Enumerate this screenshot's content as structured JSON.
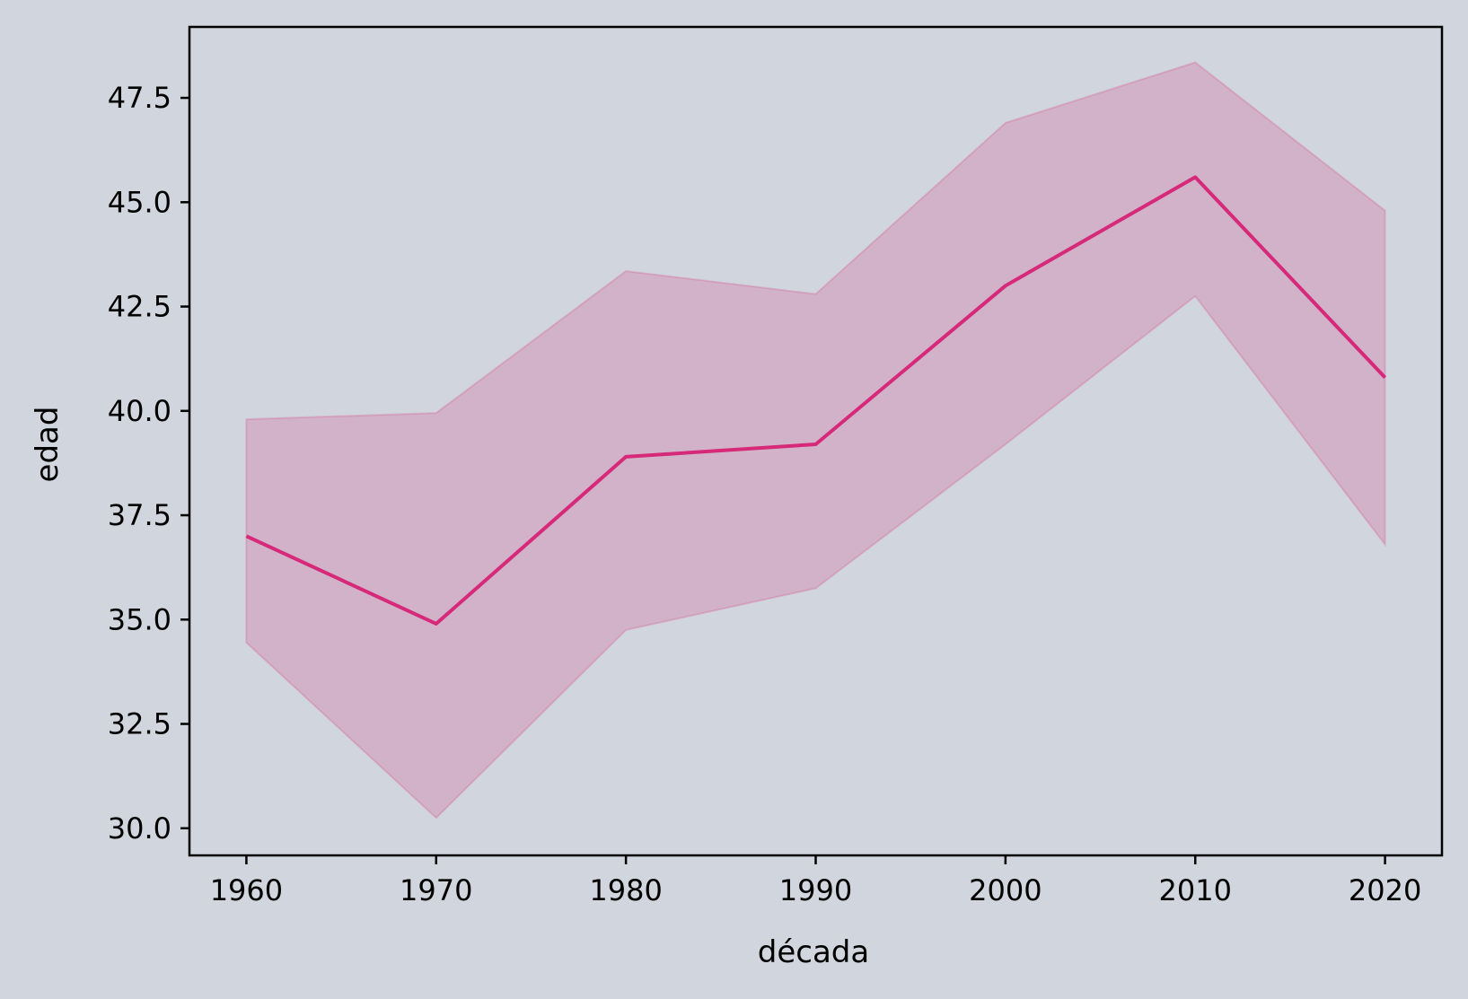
{
  "chart_data": {
    "type": "line",
    "title": "",
    "xlabel": "década",
    "ylabel": "edad",
    "x": [
      1960,
      1970,
      1980,
      1990,
      2000,
      2010,
      2020
    ],
    "series": [
      {
        "values": [
          37.0,
          34.9,
          38.9,
          39.2,
          43.0,
          45.6,
          40.8
        ],
        "ci_lower": [
          34.45,
          30.25,
          34.75,
          35.75,
          39.2,
          42.75,
          36.8
        ],
        "ci_upper": [
          39.8,
          39.95,
          43.35,
          42.8,
          46.9,
          48.35,
          44.8
        ]
      }
    ],
    "xticks": [
      "1960",
      "1970",
      "1980",
      "1990",
      "2000",
      "2010",
      "2020"
    ],
    "yticks": [
      "30.0",
      "32.5",
      "35.0",
      "37.5",
      "40.0",
      "42.5",
      "45.0",
      "47.5"
    ],
    "xlim": [
      1957,
      2023
    ],
    "ylim": [
      29.35,
      49.2
    ],
    "grid": false,
    "colors": {
      "background": "#d1d5dd",
      "line": "#d6297a",
      "band": "#d6297a"
    }
  }
}
